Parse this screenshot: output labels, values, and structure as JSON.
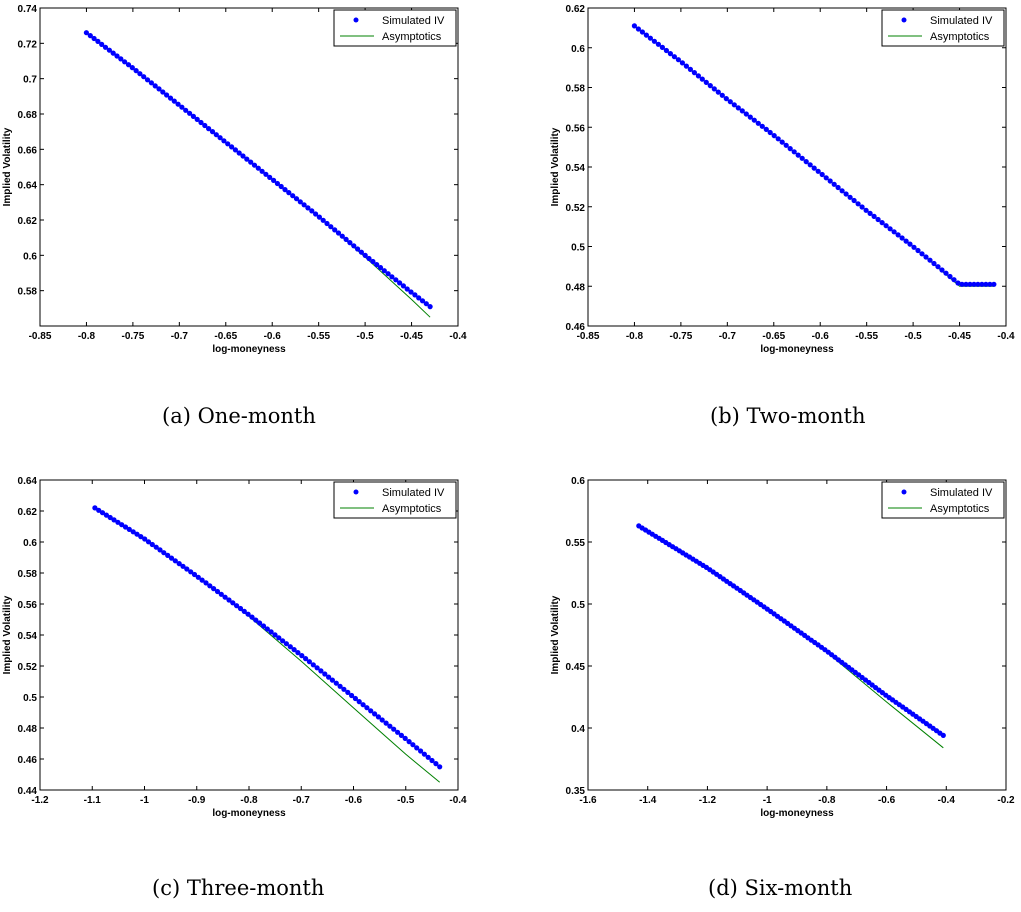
{
  "colors": {
    "simulated": "#0000ff",
    "asymptotics": "#008000",
    "axes": "#000000",
    "background": "#ffffff"
  },
  "chart_data": [
    {
      "type": "scatter",
      "caption": "(a) One-month",
      "xlabel": "log-moneyness",
      "ylabel": "Implied Volatility",
      "xlim": [
        -0.85,
        -0.4
      ],
      "ylim": [
        0.56,
        0.74
      ],
      "xticks": [
        "-0.85",
        "-0.8",
        "-0.75",
        "-0.7",
        "-0.65",
        "-0.6",
        "-0.55",
        "-0.5",
        "-0.45",
        "-0.4"
      ],
      "yticks": [
        "0.58",
        "0.6",
        "0.62",
        "0.64",
        "0.66",
        "0.68",
        "0.7",
        "0.72",
        "0.74"
      ],
      "legend_position": "top-right",
      "series": [
        {
          "name": "Simulated IV",
          "style": "markers",
          "x": [
            -0.8,
            -0.75,
            -0.7,
            -0.65,
            -0.6,
            -0.55,
            -0.5,
            -0.45,
            -0.43
          ],
          "y": [
            0.726,
            0.706,
            0.685,
            0.664,
            0.643,
            0.622,
            0.6,
            0.579,
            0.571
          ]
        },
        {
          "name": "Asymptotics",
          "style": "line",
          "x": [
            -0.8,
            -0.75,
            -0.7,
            -0.65,
            -0.6,
            -0.55,
            -0.5,
            -0.45,
            -0.43
          ],
          "y": [
            0.726,
            0.706,
            0.685,
            0.664,
            0.643,
            0.622,
            0.599,
            0.575,
            0.565
          ]
        }
      ]
    },
    {
      "type": "scatter",
      "caption": "(b) Two-month",
      "xlabel": "log-moneyness",
      "ylabel": "Implied Volatility",
      "xlim": [
        -0.85,
        -0.4
      ],
      "ylim": [
        0.46,
        0.62
      ],
      "xticks": [
        "-0.85",
        "-0.8",
        "-0.75",
        "-0.7",
        "-0.65",
        "-0.6",
        "-0.55",
        "-0.5",
        "-0.45",
        "-0.4"
      ],
      "yticks": [
        "0.46",
        "0.48",
        "0.5",
        "0.52",
        "0.54",
        "0.56",
        "0.58",
        "0.6",
        "0.62"
      ],
      "legend_position": "top-right",
      "series": [
        {
          "name": "Simulated IV",
          "style": "markers",
          "x": [
            -0.8,
            -0.75,
            -0.7,
            -0.65,
            -0.6,
            -0.55,
            -0.5,
            -0.45,
            -0.413
          ],
          "y": [
            0.611,
            0.593,
            0.574,
            0.556,
            0.537,
            0.518,
            0.5,
            0.481,
            0.481
          ]
        },
        {
          "name": "Asymptotics",
          "style": "line",
          "x": [
            -0.8,
            -0.75,
            -0.7,
            -0.65,
            -0.6,
            -0.55,
            -0.5,
            -0.45,
            -0.413
          ],
          "y": [
            0.611,
            0.593,
            0.574,
            0.556,
            0.537,
            0.518,
            0.5,
            0.48,
            0.48
          ]
        }
      ]
    },
    {
      "type": "scatter",
      "caption": "(c) Three-month",
      "xlabel": "log-moneyness",
      "ylabel": "Implied Volatility",
      "xlim": [
        -1.2,
        -0.4
      ],
      "ylim": [
        0.44,
        0.64
      ],
      "xticks": [
        "-1.2",
        "-1.1",
        "-1",
        "-0.9",
        "-0.8",
        "-0.7",
        "-0.6",
        "-0.5",
        "-0.4"
      ],
      "yticks": [
        "0.44",
        "0.46",
        "0.48",
        "0.5",
        "0.52",
        "0.54",
        "0.56",
        "0.58",
        "0.6",
        "0.62",
        "0.64"
      ],
      "legend_position": "top-right",
      "series": [
        {
          "name": "Simulated IV",
          "style": "markers",
          "x": [
            -1.095,
            -1.0,
            -0.9,
            -0.8,
            -0.7,
            -0.6,
            -0.5,
            -0.435
          ],
          "y": [
            0.622,
            0.602,
            0.578,
            0.553,
            0.527,
            0.5,
            0.473,
            0.455
          ]
        },
        {
          "name": "Asymptotics",
          "style": "line",
          "x": [
            -1.095,
            -1.0,
            -0.9,
            -0.8,
            -0.7,
            -0.6,
            -0.5,
            -0.435
          ],
          "y": [
            0.622,
            0.602,
            0.578,
            0.552,
            0.523,
            0.493,
            0.463,
            0.445
          ]
        }
      ]
    },
    {
      "type": "scatter",
      "caption": "(d) Six-month",
      "xlabel": "log-moneyness",
      "ylabel": "Implied Volatility",
      "xlim": [
        -1.6,
        -0.2
      ],
      "ylim": [
        0.35,
        0.6
      ],
      "xticks": [
        "-1.6",
        "-1.4",
        "-1.2",
        "-1",
        "-0.8",
        "-0.6",
        "-0.4",
        "-0.2"
      ],
      "yticks": [
        "0.35",
        "0.4",
        "0.45",
        "0.5",
        "0.55",
        "0.6"
      ],
      "legend_position": "top-right",
      "series": [
        {
          "name": "Simulated IV",
          "style": "markers",
          "x": [
            -1.43,
            -1.2,
            -1.0,
            -0.8,
            -0.6,
            -0.41
          ],
          "y": [
            0.563,
            0.529,
            0.496,
            0.462,
            0.426,
            0.394
          ]
        },
        {
          "name": "Asymptotics",
          "style": "line",
          "x": [
            -1.43,
            -1.2,
            -1.0,
            -0.8,
            -0.6,
            -0.41
          ],
          "y": [
            0.563,
            0.529,
            0.496,
            0.461,
            0.421,
            0.384
          ]
        }
      ]
    }
  ]
}
